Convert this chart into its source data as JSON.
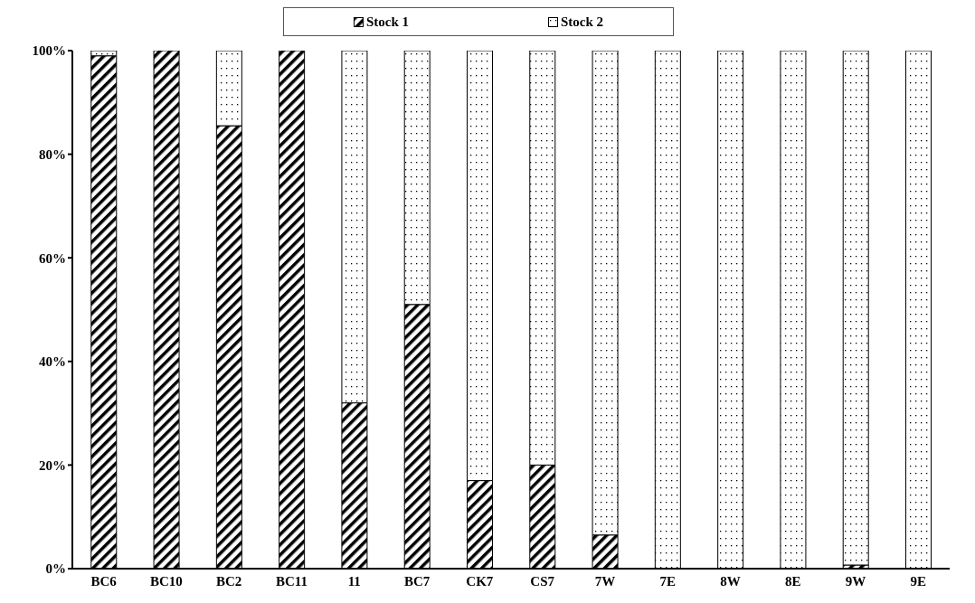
{
  "chart_data": {
    "type": "bar",
    "stacked": true,
    "categories": [
      "BC6",
      "BC10",
      "BC2",
      "BC11",
      "11",
      "BC7",
      "CK7",
      "CS7",
      "7W",
      "7E",
      "8W",
      "8E",
      "9W",
      "9E"
    ],
    "series": [
      {
        "name": "Stock 1",
        "color": "#000000",
        "values": [
          99,
          100,
          85.5,
          100,
          32,
          51,
          17,
          20,
          6.5,
          0,
          0,
          0,
          0.7,
          0
        ]
      },
      {
        "name": "Stock 2",
        "color": "#000000",
        "values": [
          1,
          0,
          14.5,
          0,
          68,
          49,
          83,
          80,
          93.5,
          100,
          100,
          100,
          99.3,
          100
        ]
      }
    ],
    "ylim": [
      0,
      100
    ],
    "yticks": [
      {
        "value": 0,
        "label": "0%"
      },
      {
        "value": 20,
        "label": "20%"
      },
      {
        "value": 40,
        "label": "40%"
      },
      {
        "value": 60,
        "label": "60%"
      },
      {
        "value": 80,
        "label": "80%"
      },
      {
        "value": 100,
        "label": "100%"
      }
    ],
    "grid": false,
    "legend": "top"
  }
}
